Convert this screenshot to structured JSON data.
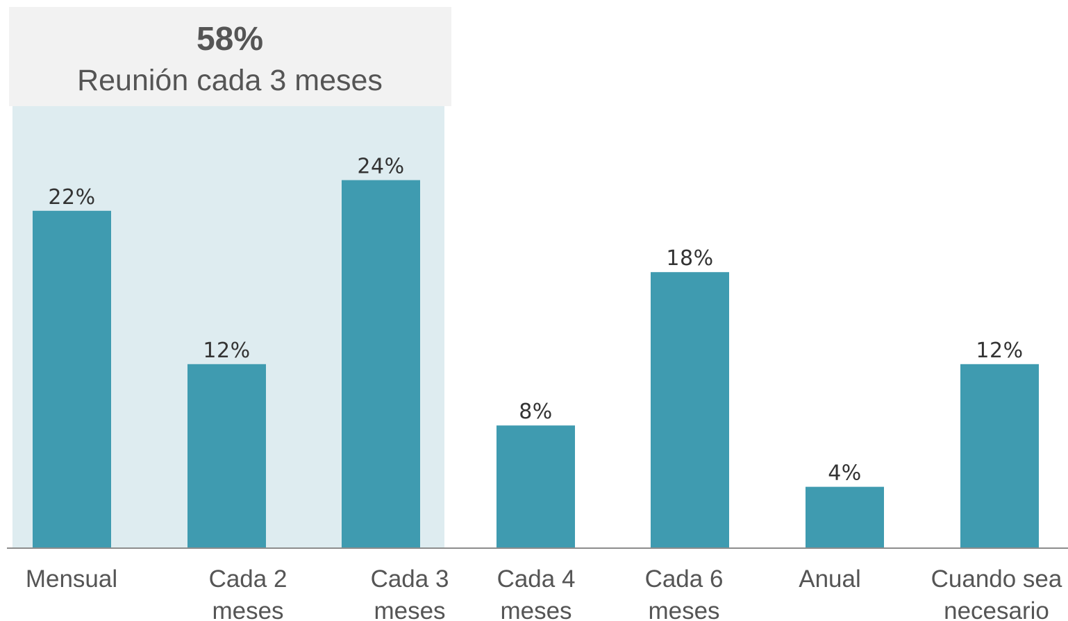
{
  "chart_data": {
    "type": "bar",
    "categories": [
      [
        "Mensual"
      ],
      [
        "Cada 2",
        "meses"
      ],
      [
        "Cada 3",
        "meses"
      ],
      [
        "Cada 4",
        "meses"
      ],
      [
        "Cada 6",
        "meses"
      ],
      [
        "Anual"
      ],
      [
        "Cuando sea",
        "necesario"
      ]
    ],
    "values": [
      22,
      12,
      24,
      8,
      18,
      4,
      12
    ],
    "data_labels": [
      "22%",
      "12%",
      "24%",
      "8%",
      "18%",
      "4%",
      "12%"
    ],
    "unit": "%",
    "ylim": [
      0,
      24
    ],
    "grid": false,
    "highlight": {
      "categories_covered": [
        0,
        1,
        2
      ],
      "value_label": "58%",
      "text": "Reunión cada 3 meses"
    }
  },
  "colors": {
    "bar": "#3f9bb0",
    "highlight_band": "#deecf0",
    "callout_box": "#f2f2f2",
    "baseline": "#8c8c8c",
    "callout_pct_text": "#555555",
    "callout_text": "#555555",
    "data_label_text": "#333333",
    "category_text": "#555555"
  }
}
